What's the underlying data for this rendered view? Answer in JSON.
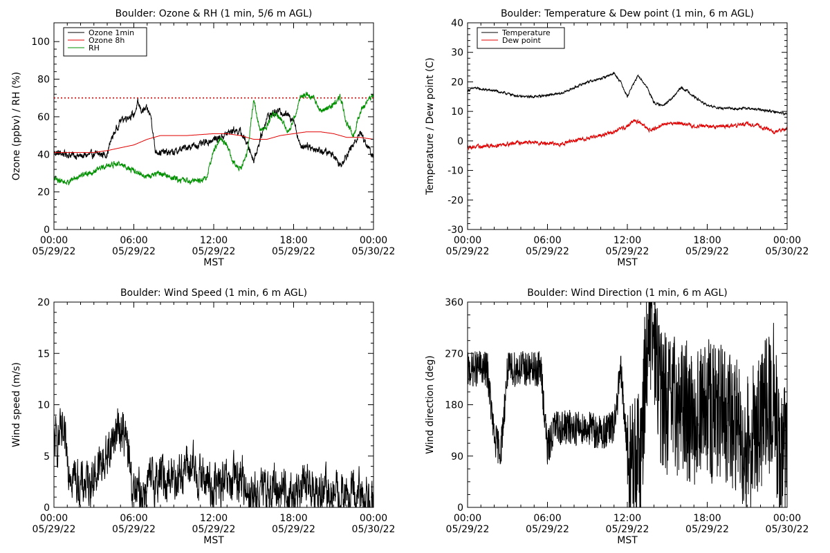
{
  "chart_data": [
    {
      "type": "line",
      "title": "Boulder: Ozone & RH (1 min, 5/6 m AGL)",
      "xlabel": "MST",
      "ylabel": "Ozone (ppbv) / RH (%)",
      "ylim": [
        0,
        110
      ],
      "yticks": [
        0,
        20,
        40,
        60,
        80,
        100
      ],
      "xlim": [
        0,
        24
      ],
      "xticks": [
        {
          "time": "00:00",
          "date": "05/29/22"
        },
        {
          "time": "06:00",
          "date": "05/29/22"
        },
        {
          "time": "12:00",
          "date": "05/29/22"
        },
        {
          "time": "18:00",
          "date": "05/29/22"
        },
        {
          "time": "00:00",
          "date": "05/30/22"
        }
      ],
      "legend": {
        "position": "top-left"
      },
      "reference_lines": [
        {
          "y": 70,
          "color": "#e00000",
          "style": "dotted"
        }
      ],
      "series": [
        {
          "name": "Ozone 1min",
          "color": "#000000",
          "noise": 1.5,
          "x": [
            0,
            1,
            2,
            3,
            4,
            4.3,
            5,
            5.5,
            6,
            6.3,
            6.6,
            7,
            7.3,
            7.6,
            8,
            9,
            10,
            11,
            12,
            12.5,
            13,
            13.5,
            14,
            14.5,
            15,
            15.5,
            16,
            16.5,
            17,
            18,
            18.5,
            19,
            19.5,
            20,
            21,
            21.5,
            22,
            22.5,
            23,
            24
          ],
          "y": [
            41,
            40,
            39,
            40,
            40,
            48,
            58,
            60,
            61,
            67,
            63,
            64,
            60,
            42,
            41,
            41,
            44,
            45,
            48,
            49,
            51,
            53,
            52,
            46,
            37,
            48,
            60,
            62,
            63,
            59,
            44,
            45,
            43,
            42,
            40,
            34,
            40,
            45,
            52,
            38
          ]
        },
        {
          "name": "Ozone 8h",
          "color": "#e00000",
          "noise": 0,
          "x": [
            0,
            2,
            3,
            4,
            6,
            7,
            8,
            10,
            12,
            13,
            14,
            15,
            16,
            17,
            18,
            19,
            20,
            21,
            22,
            23,
            24
          ],
          "y": [
            41,
            41,
            41,
            42,
            45,
            48,
            50,
            50,
            51,
            51,
            50,
            48,
            48,
            50,
            51,
            52,
            52,
            51,
            49,
            49,
            48
          ]
        },
        {
          "name": "RH",
          "color": "#009000",
          "noise": 1.2,
          "x": [
            0,
            0.5,
            1,
            2,
            3,
            4,
            5,
            6,
            7,
            8,
            9,
            10,
            11,
            11.5,
            12,
            12.5,
            13,
            13.5,
            14,
            14.5,
            15,
            15.5,
            16,
            16.5,
            17,
            17.5,
            18,
            18.5,
            19,
            19.5,
            20,
            21,
            21.5,
            22,
            22.5,
            23,
            24
          ],
          "y": [
            27,
            26,
            25,
            29,
            31,
            34,
            35,
            31,
            28,
            30,
            27,
            26,
            26,
            28,
            42,
            48,
            45,
            35,
            32,
            40,
            69,
            52,
            55,
            62,
            60,
            52,
            58,
            70,
            72,
            70,
            63,
            66,
            71,
            56,
            50,
            63,
            72
          ]
        }
      ]
    },
    {
      "type": "line",
      "title": "Boulder: Temperature & Dew point (1 min, 6 m AGL)",
      "xlabel": "MST",
      "ylabel": "Temperature / Dew point (C)",
      "ylim": [
        -30,
        40
      ],
      "yticks": [
        -30,
        -20,
        -10,
        0,
        10,
        20,
        30,
        40
      ],
      "xlim": [
        0,
        24
      ],
      "xticks": [
        {
          "time": "00:00",
          "date": "05/29/22"
        },
        {
          "time": "06:00",
          "date": "05/29/22"
        },
        {
          "time": "12:00",
          "date": "05/29/22"
        },
        {
          "time": "18:00",
          "date": "05/29/22"
        },
        {
          "time": "00:00",
          "date": "05/30/22"
        }
      ],
      "legend": {
        "position": "top-left"
      },
      "series": [
        {
          "name": "Temperature",
          "color": "#000000",
          "noise": 0.3,
          "x": [
            0,
            0.5,
            1,
            2,
            3,
            4,
            5,
            6,
            7,
            8,
            9,
            10,
            10.5,
            11,
            11.5,
            12,
            12.3,
            12.8,
            13,
            13.5,
            14,
            14.5,
            15,
            15.5,
            16,
            16.5,
            17,
            18,
            19,
            20,
            21,
            22,
            23,
            24
          ],
          "y": [
            17,
            18,
            17.5,
            17,
            16,
            15,
            15,
            15.5,
            16,
            18,
            20,
            21,
            22,
            23,
            20,
            15,
            18,
            22,
            21,
            18,
            13,
            12,
            13,
            15,
            18,
            17,
            15,
            12,
            11,
            11,
            11,
            10.5,
            10,
            9
          ]
        },
        {
          "name": "Dew point",
          "color": "#e00000",
          "noise": 0.5,
          "x": [
            0,
            1,
            2,
            3,
            4,
            5,
            6,
            7,
            8,
            9,
            10,
            11,
            12,
            12.5,
            13,
            13.5,
            14,
            15,
            16,
            17,
            18,
            19,
            20,
            21,
            22,
            23,
            24
          ],
          "y": [
            -2,
            -2,
            -1.5,
            -1,
            -0.5,
            -0.5,
            -1,
            -1,
            0,
            1,
            2,
            3,
            5,
            7,
            6,
            4,
            4,
            6,
            6,
            5,
            5,
            5,
            5,
            6,
            5,
            3,
            4
          ]
        }
      ]
    },
    {
      "type": "line",
      "title": "Boulder: Wind Speed (1 min, 6 m AGL)",
      "xlabel": "MST",
      "ylabel": "Wind speed (m/s)",
      "ylim": [
        0,
        20
      ],
      "yticks": [
        0,
        5,
        10,
        15,
        20
      ],
      "xlim": [
        0,
        24
      ],
      "xticks": [
        {
          "time": "00:00",
          "date": "05/29/22"
        },
        {
          "time": "06:00",
          "date": "05/29/22"
        },
        {
          "time": "12:00",
          "date": "05/29/22"
        },
        {
          "time": "18:00",
          "date": "05/29/22"
        },
        {
          "time": "00:00",
          "date": "05/30/22"
        }
      ],
      "series": [
        {
          "name": "",
          "color": "#000000",
          "noise": 1.8,
          "x": [
            0,
            0.5,
            1,
            1.5,
            2,
            3,
            4,
            4.5,
            5,
            5.5,
            6,
            7,
            8,
            9,
            10,
            11,
            12,
            13,
            14,
            15,
            16,
            17,
            18,
            19,
            20,
            21,
            22,
            23,
            24
          ],
          "y": [
            6,
            7,
            5,
            3,
            2,
            3,
            5,
            7,
            8,
            6,
            1,
            2,
            3,
            3,
            4,
            3,
            2,
            2,
            3,
            1,
            1.5,
            2,
            1,
            2,
            1.5,
            1,
            1,
            1.2,
            1
          ]
        }
      ]
    },
    {
      "type": "line",
      "title": "Boulder: Wind Direction (1 min, 6 m AGL)",
      "xlabel": "MST",
      "ylabel": "Wind direction (deg)",
      "ylim": [
        0,
        360
      ],
      "yticks": [
        0,
        90,
        180,
        270,
        360
      ],
      "xlim": [
        0,
        24
      ],
      "xticks": [
        {
          "time": "00:00",
          "date": "05/29/22"
        },
        {
          "time": "06:00",
          "date": "05/29/22"
        },
        {
          "time": "12:00",
          "date": "05/29/22"
        },
        {
          "time": "18:00",
          "date": "05/29/22"
        },
        {
          "time": "00:00",
          "date": "05/30/22"
        }
      ],
      "series": [
        {
          "name": "",
          "color": "#000000",
          "noise": 90,
          "x": [
            0,
            1,
            1.5,
            2,
            2.5,
            3,
            4,
            5,
            5.5,
            6,
            6.5,
            7,
            8,
            9,
            10,
            11,
            11.5,
            12,
            12.5,
            13,
            13.5,
            14,
            14.5,
            15,
            16,
            17,
            18,
            19,
            20,
            21,
            22,
            23,
            23.5,
            24
          ],
          "y": [
            240,
            245,
            240,
            120,
            100,
            240,
            245,
            240,
            245,
            100,
            140,
            140,
            140,
            140,
            130,
            140,
            240,
            100,
            70,
            90,
            300,
            300,
            200,
            180,
            180,
            160,
            170,
            160,
            150,
            110,
            150,
            200,
            60,
            120
          ]
        }
      ]
    }
  ]
}
